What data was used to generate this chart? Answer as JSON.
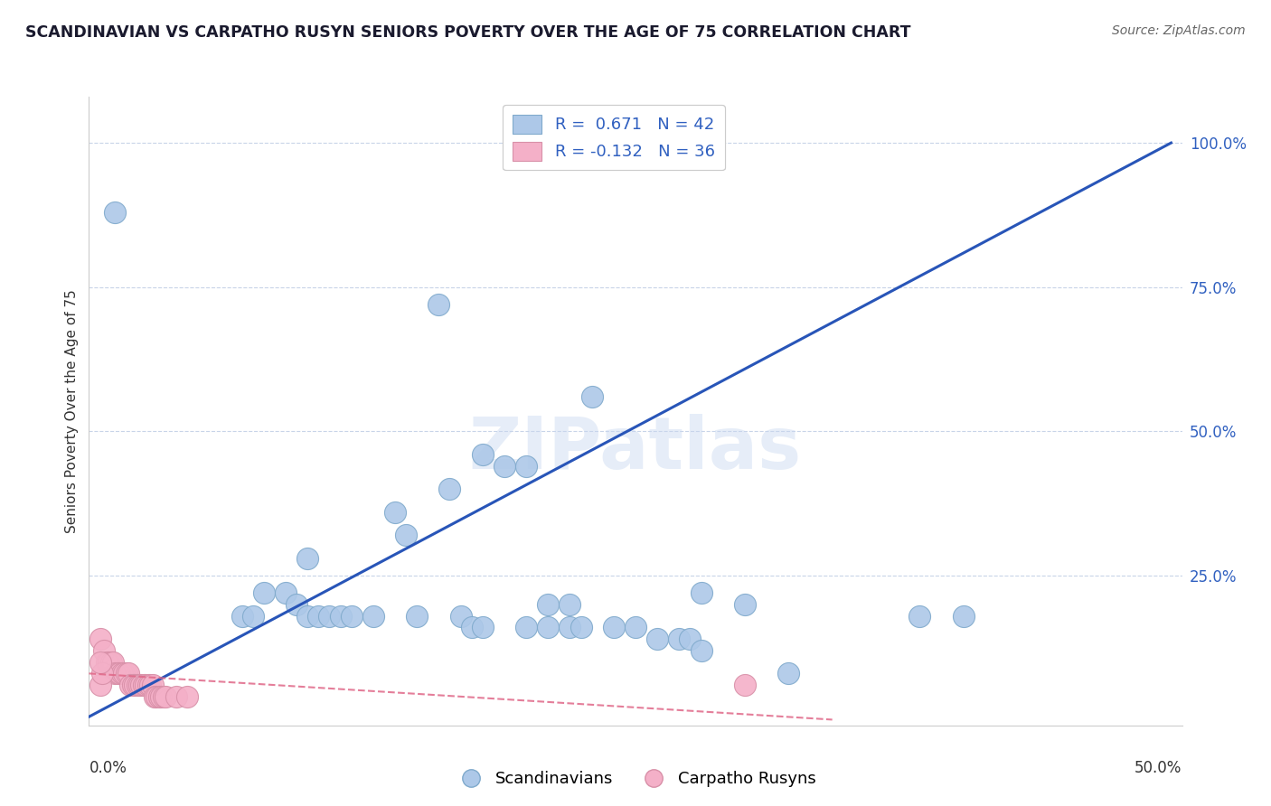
{
  "title": "SCANDINAVIAN VS CARPATHO RUSYN SENIORS POVERTY OVER THE AGE OF 75 CORRELATION CHART",
  "source_text": "Source: ZipAtlas.com",
  "ylabel": "Seniors Poverty Over the Age of 75",
  "xlim": [
    0,
    0.5
  ],
  "ylim": [
    -0.01,
    1.08
  ],
  "yticks": [
    0.0,
    0.25,
    0.5,
    0.75,
    1.0
  ],
  "ytick_labels": [
    "",
    "25.0%",
    "50.0%",
    "75.0%",
    "100.0%"
  ],
  "legend_entries": [
    {
      "color": "#adc8e8",
      "edge": "#80aacc",
      "R": "0.671",
      "N": "42"
    },
    {
      "color": "#f4b0c8",
      "edge": "#d890a8",
      "R": "-0.132",
      "N": "36"
    }
  ],
  "watermark": "ZIPatlas",
  "bg_color": "#ffffff",
  "grid_color": "#c8d4e8",
  "scand_color": "#adc8e8",
  "scand_edge": "#80aacc",
  "rusyn_color": "#f4b0c8",
  "rusyn_edge": "#d890a8",
  "trendline_blue": "#2855b8",
  "trendline_pink": "#e06888",
  "scand_points": [
    [
      0.012,
      0.88
    ],
    [
      0.16,
      0.72
    ],
    [
      0.23,
      0.56
    ],
    [
      0.18,
      0.46
    ],
    [
      0.19,
      0.44
    ],
    [
      0.2,
      0.44
    ],
    [
      0.165,
      0.4
    ],
    [
      0.14,
      0.36
    ],
    [
      0.145,
      0.32
    ],
    [
      0.1,
      0.28
    ],
    [
      0.08,
      0.22
    ],
    [
      0.09,
      0.22
    ],
    [
      0.095,
      0.2
    ],
    [
      0.07,
      0.18
    ],
    [
      0.075,
      0.18
    ],
    [
      0.1,
      0.18
    ],
    [
      0.105,
      0.18
    ],
    [
      0.11,
      0.18
    ],
    [
      0.115,
      0.18
    ],
    [
      0.12,
      0.18
    ],
    [
      0.13,
      0.18
    ],
    [
      0.15,
      0.18
    ],
    [
      0.17,
      0.18
    ],
    [
      0.175,
      0.16
    ],
    [
      0.18,
      0.16
    ],
    [
      0.2,
      0.16
    ],
    [
      0.21,
      0.16
    ],
    [
      0.22,
      0.16
    ],
    [
      0.225,
      0.16
    ],
    [
      0.24,
      0.16
    ],
    [
      0.25,
      0.16
    ],
    [
      0.26,
      0.14
    ],
    [
      0.27,
      0.14
    ],
    [
      0.275,
      0.14
    ],
    [
      0.28,
      0.12
    ],
    [
      0.21,
      0.2
    ],
    [
      0.22,
      0.2
    ],
    [
      0.28,
      0.22
    ],
    [
      0.3,
      0.2
    ],
    [
      0.32,
      0.08
    ],
    [
      0.38,
      0.18
    ],
    [
      0.4,
      0.18
    ]
  ],
  "rusyn_points": [
    [
      0.005,
      0.14
    ],
    [
      0.007,
      0.12
    ],
    [
      0.008,
      0.1
    ],
    [
      0.009,
      0.1
    ],
    [
      0.01,
      0.1
    ],
    [
      0.011,
      0.1
    ],
    [
      0.012,
      0.08
    ],
    [
      0.013,
      0.08
    ],
    [
      0.014,
      0.08
    ],
    [
      0.015,
      0.08
    ],
    [
      0.016,
      0.08
    ],
    [
      0.017,
      0.08
    ],
    [
      0.018,
      0.08
    ],
    [
      0.019,
      0.06
    ],
    [
      0.02,
      0.06
    ],
    [
      0.021,
      0.06
    ],
    [
      0.022,
      0.06
    ],
    [
      0.023,
      0.06
    ],
    [
      0.024,
      0.06
    ],
    [
      0.025,
      0.06
    ],
    [
      0.026,
      0.06
    ],
    [
      0.027,
      0.06
    ],
    [
      0.028,
      0.06
    ],
    [
      0.029,
      0.06
    ],
    [
      0.03,
      0.04
    ],
    [
      0.031,
      0.04
    ],
    [
      0.032,
      0.04
    ],
    [
      0.033,
      0.04
    ],
    [
      0.034,
      0.04
    ],
    [
      0.035,
      0.04
    ],
    [
      0.04,
      0.04
    ],
    [
      0.045,
      0.04
    ],
    [
      0.005,
      0.06
    ],
    [
      0.006,
      0.08
    ],
    [
      0.3,
      0.06
    ],
    [
      0.005,
      0.1
    ]
  ],
  "scand_trend_x": [
    0.0,
    0.495
  ],
  "scand_trend_y": [
    0.005,
    1.0
  ],
  "rusyn_trend_x": [
    0.0,
    0.34
  ],
  "rusyn_trend_y": [
    0.08,
    0.0
  ]
}
